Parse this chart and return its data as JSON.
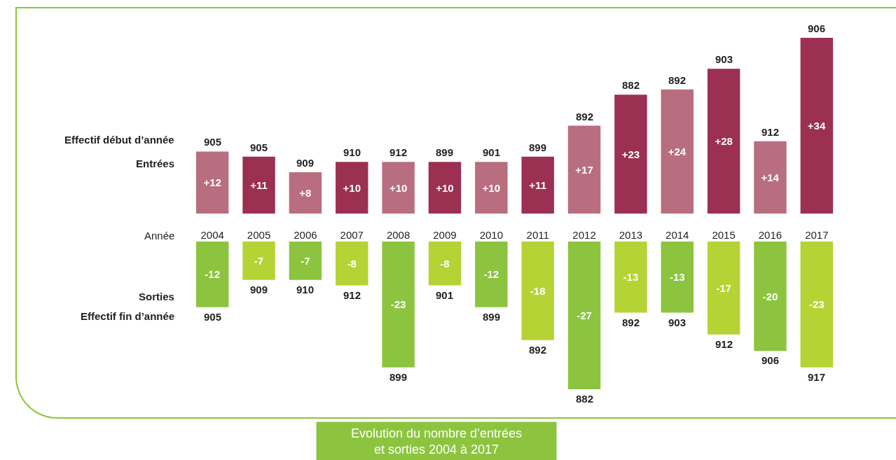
{
  "chart_data": [
    {
      "type": "bar",
      "categories": [
        "2004",
        "2005",
        "2006",
        "2007",
        "2008",
        "2009",
        "2010",
        "2011",
        "2012",
        "2013",
        "2014",
        "2015",
        "2016",
        "2017"
      ],
      "series": [
        {
          "name": "Entrées",
          "colors": [
            "#b86e7e",
            "#9b3052",
            "#b86e7e",
            "#9b3052",
            "#b86e7e",
            "#9b3052",
            "#b86e7e",
            "#9b3052",
            "#b86e7e",
            "#9b3052",
            "#b86e7e",
            "#9b3052",
            "#b86e7e",
            "#9b3052"
          ],
          "values": [
            12,
            11,
            8,
            10,
            10,
            10,
            10,
            11,
            17,
            23,
            24,
            28,
            14,
            34
          ],
          "value_labels": [
            "+12",
            "+11",
            "+8",
            "+10",
            "+10",
            "+10",
            "+10",
            "+11",
            "+17",
            "+23",
            "+24",
            "+28",
            "+14",
            "+34"
          ]
        }
      ],
      "tick_labels": false,
      "grid": false,
      "legend": false,
      "annotations": [
        "Effectif début d’année",
        {
          "text": "905",
          "x": "2004",
          "y": 12
        },
        {
          "text": "905",
          "x": "2005",
          "y": 11
        },
        {
          "text": "909",
          "x": "2006",
          "y": 8
        },
        {
          "text": "910",
          "x": "2007",
          "y": 10
        },
        {
          "text": "912",
          "x": "2008",
          "y": 10
        },
        {
          "text": "899",
          "x": "2009",
          "y": 10
        },
        {
          "text": "901",
          "x": "2010",
          "y": 10
        },
        {
          "text": "899",
          "x": "2011",
          "y": 11
        },
        {
          "text": "892",
          "x": "2012",
          "y": 17
        },
        {
          "text": "882",
          "x": "2013",
          "y": 23
        },
        {
          "text": "892",
          "x": "2014",
          "y": 24
        },
        {
          "text": "903",
          "x": "2015",
          "y": 28
        },
        {
          "text": "912",
          "x": "2016",
          "y": 14
        },
        {
          "text": "906",
          "x": "2017",
          "y": 34
        }
      ]
    },
    {
      "type": "bar",
      "title": "Evolution du nombre d’entrées\net sorties 2004 à 2017",
      "xlabel": "Année",
      "categories": [
        "2004",
        "2005",
        "2006",
        "2007",
        "2008",
        "2009",
        "2010",
        "2011",
        "2012",
        "2013",
        "2014",
        "2015",
        "2016",
        "2017"
      ],
      "series": [
        {
          "name": "Sorties",
          "colors": [
            "#8cc43f",
            "#b5d334",
            "#8cc43f",
            "#b5d334",
            "#8cc43f",
            "#b5d334",
            "#8cc43f",
            "#b5d334",
            "#8cc43f",
            "#b5d334",
            "#8cc43f",
            "#b5d334",
            "#8cc43f",
            "#b5d334"
          ],
          "values": [
            -12,
            -7,
            -7,
            -8,
            -23,
            -8,
            -12,
            -18,
            -27,
            -13,
            -13,
            -17,
            -20,
            -23
          ],
          "value_labels": [
            "-12",
            "-7",
            "-7",
            "-8",
            "-23",
            "-8",
            "-12",
            "-18",
            "-27",
            "-13",
            "-13",
            "-17",
            "-20",
            "-23"
          ]
        }
      ],
      "tick_labels": "x",
      "grid": false,
      "legend": false,
      "annotations": [
        "Effectif fin d’année",
        {
          "text": "905",
          "x": "2004",
          "y": -12
        },
        {
          "text": "909",
          "x": "2005",
          "y": -7
        },
        {
          "text": "910",
          "x": "2006",
          "y": -7
        },
        {
          "text": "912",
          "x": "2007",
          "y": -8
        },
        {
          "text": "899",
          "x": "2008",
          "y": -23
        },
        {
          "text": "901",
          "x": "2009",
          "y": -8
        },
        {
          "text": "899",
          "x": "2010",
          "y": -12
        },
        {
          "text": "892",
          "x": "2011",
          "y": -18
        },
        {
          "text": "882",
          "x": "2012",
          "y": -27
        },
        {
          "text": "892",
          "x": "2013",
          "y": -13
        },
        {
          "text": "903",
          "x": "2014",
          "y": -13
        },
        {
          "text": "912",
          "x": "2015",
          "y": -17
        },
        {
          "text": "906",
          "x": "2016",
          "y": -20
        },
        {
          "text": "917",
          "x": "2017",
          "y": -23
        }
      ]
    }
  ]
}
